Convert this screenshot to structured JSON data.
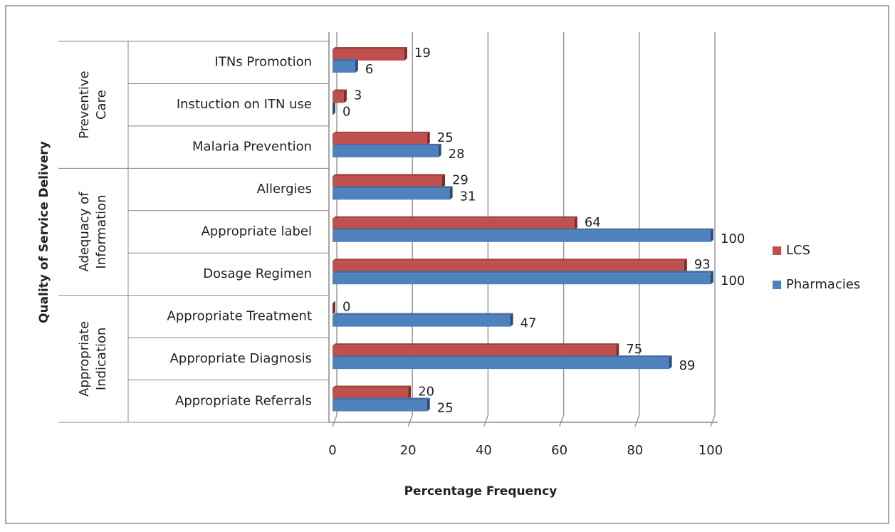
{
  "chart_data": {
    "type": "bar",
    "orientation": "horizontal",
    "x_label": "Percentage Frequency",
    "y_label": "Quality of Service Delivery",
    "categories": [
      "ITNs Promotion",
      "Instuction on ITN use",
      "Malaria Prevention",
      "Allergies",
      "Appropriate label",
      "Dosage Regimen",
      "Appropriate Treatment",
      "Appropriate Diagnosis",
      "Appropriate Referrals"
    ],
    "groups": [
      {
        "label_lines": [
          "Preventive",
          "Care"
        ],
        "size": 3
      },
      {
        "label_lines": [
          "Adequacy of",
          "Information"
        ],
        "size": 3
      },
      {
        "label_lines": [
          "Appropriate",
          "Indication"
        ],
        "size": 3
      }
    ],
    "series": [
      {
        "name": "LCS",
        "color": "#c0504d",
        "values": [
          19,
          3,
          25,
          29,
          64,
          93,
          0,
          75,
          20
        ]
      },
      {
        "name": "Pharmacies",
        "color": "#4f81bd",
        "values": [
          6,
          0,
          28,
          31,
          100,
          100,
          47,
          89,
          25
        ]
      }
    ],
    "xlim": [
      0,
      100
    ],
    "xticks": [
      0,
      20,
      40,
      60,
      80,
      100
    ],
    "grid": true,
    "legend": "right"
  }
}
